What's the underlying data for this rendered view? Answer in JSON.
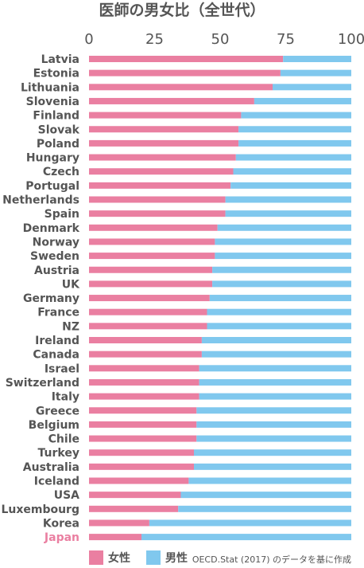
{
  "chart_data": {
    "type": "bar",
    "orientation": "horizontal",
    "stacked": true,
    "title": "医師の男女比（全世代）",
    "xlim": [
      0,
      100
    ],
    "xticks": [
      "0",
      "25",
      "50",
      "75",
      "100"
    ],
    "categories": [
      "Latvia",
      "Estonia",
      "Lithuania",
      "Slovenia",
      "Finland",
      "Slovak",
      "Poland",
      "Hungary",
      "Czech",
      "Portugal",
      "Netherlands",
      "Spain",
      "Denmark",
      "Norway",
      "Sweden",
      "Austria",
      "UK",
      "Germany",
      "France",
      "NZ",
      "Ireland",
      "Canada",
      "Israel",
      "Switzerland",
      "Italy",
      "Greece",
      "Belgium",
      "Chile",
      "Turkey",
      "Australia",
      "Iceland",
      "USA",
      "Luxembourg",
      "Korea",
      "Japan"
    ],
    "highlight_category": "Japan",
    "series": [
      {
        "name": "女性",
        "color": "#ea7fa1",
        "values": [
          74,
          73,
          70,
          63,
          58,
          57,
          57,
          56,
          55,
          54,
          52,
          52,
          49,
          48,
          48,
          47,
          47,
          46,
          45,
          45,
          43,
          43,
          42,
          42,
          42,
          41,
          41,
          41,
          40,
          40,
          38,
          35,
          34,
          23,
          20
        ]
      },
      {
        "name": "男性",
        "color": "#80c8ee",
        "values": [
          26,
          27,
          30,
          37,
          42,
          43,
          43,
          44,
          45,
          46,
          48,
          48,
          51,
          52,
          52,
          53,
          53,
          54,
          55,
          55,
          57,
          57,
          58,
          58,
          58,
          59,
          59,
          59,
          60,
          60,
          62,
          65,
          66,
          77,
          80
        ]
      }
    ],
    "source": "OECD.Stat (2017) のデータを基に作成",
    "colors": {
      "highlight_label": "#ea7fa1",
      "label": "#555555",
      "axis": "#555555"
    }
  }
}
